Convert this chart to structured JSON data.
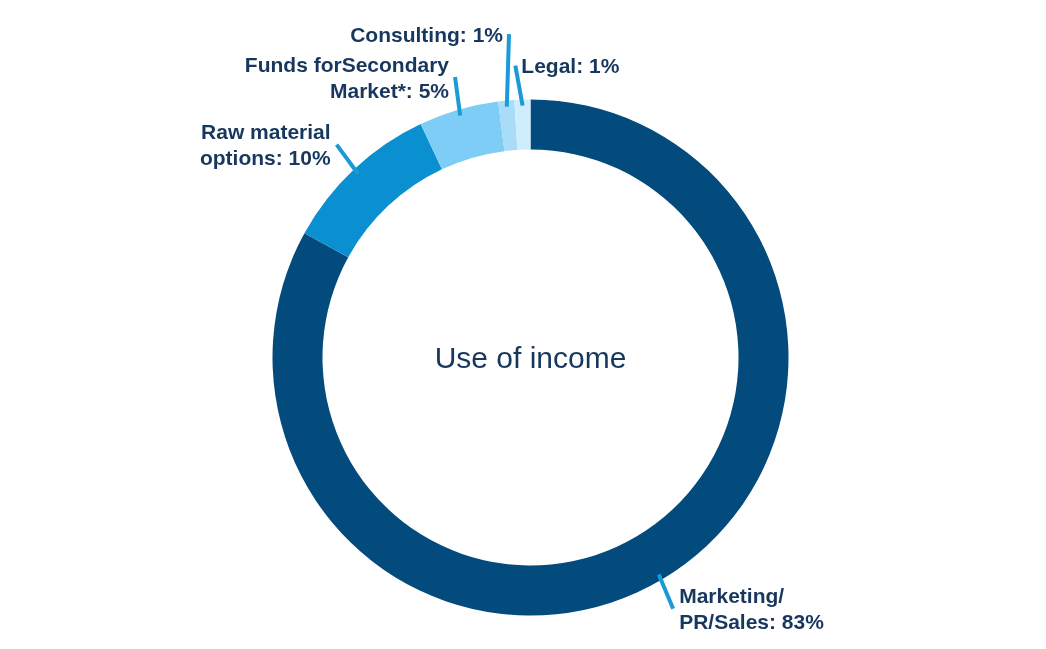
{
  "chart_data": {
    "type": "donut",
    "title": "Use of income",
    "categories": [
      "Marketing/\nPR/Sales",
      "Raw material\noptions",
      "Funds forSecondary\nMarket*",
      "Consulting",
      "Legal"
    ],
    "values": [
      83,
      10,
      5,
      1,
      1
    ],
    "value_labels": [
      "83%",
      "10%",
      "5%",
      "1%",
      "1%"
    ],
    "colors": [
      "#034a7d",
      "#0a90d0",
      "#7dcdf7",
      "#a9dcf8",
      "#cfeefb"
    ]
  }
}
